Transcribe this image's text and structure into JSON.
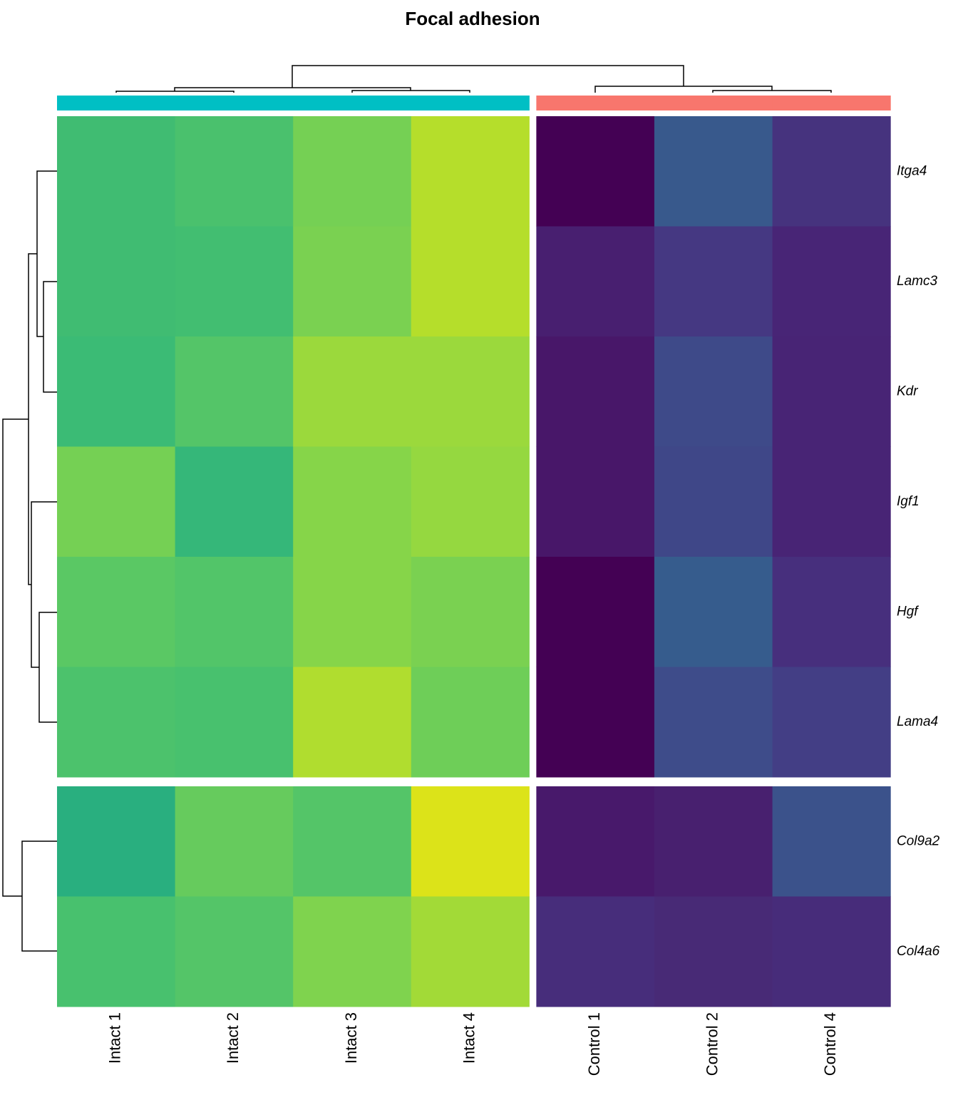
{
  "chart_data": {
    "type": "heatmap",
    "title": "Focal adhesion",
    "columns": [
      "Intact 1",
      "Intact 2",
      "Intact 3",
      "Intact 4",
      "Control 1",
      "Control 2",
      "Control 4"
    ],
    "rows": [
      "Itga4",
      "Lamc3",
      "Kdr",
      "Igf1",
      "Hgf",
      "Lama4",
      "Col9a2",
      "Col4a6"
    ],
    "column_colors": [
      "#00BFC4",
      "#00BFC4",
      "#00BFC4",
      "#00BFC4",
      "#F8766D",
      "#F8766D",
      "#F8766D"
    ],
    "column_split_after": 3,
    "row_split_after": 5,
    "cells": [
      [
        "#40BC72",
        "#4AC16D",
        "#75D054",
        "#B5DE2B",
        "#440154",
        "#38598C",
        "#46337E"
      ],
      [
        "#40BC72",
        "#42BE71",
        "#7AD151",
        "#B5DE2B",
        "#481F70",
        "#453882",
        "#482576"
      ],
      [
        "#3BBB75",
        "#54C568",
        "#9BD93C",
        "#9BD93C",
        "#481769",
        "#3E4A89",
        "#482475"
      ],
      [
        "#75D054",
        "#35B779",
        "#86D549",
        "#95D840",
        "#481769",
        "#3F4788",
        "#482475"
      ],
      [
        "#5AC864",
        "#52C569",
        "#86D549",
        "#7AD151",
        "#440154",
        "#365C8D",
        "#472F7D"
      ],
      [
        "#4CC26C",
        "#48C16E",
        "#B0DD2F",
        "#6ECE58",
        "#440154",
        "#3E4C8A",
        "#433E85"
      ],
      [
        "#29AF7F",
        "#66CB5D",
        "#54C568",
        "#DCE319",
        "#48196B",
        "#48206F",
        "#3B528B"
      ],
      [
        "#48C16E",
        "#54C568",
        "#7FD34E",
        "#A2DA37",
        "#472D7B",
        "#482A76",
        "#472C7A"
      ]
    ]
  }
}
